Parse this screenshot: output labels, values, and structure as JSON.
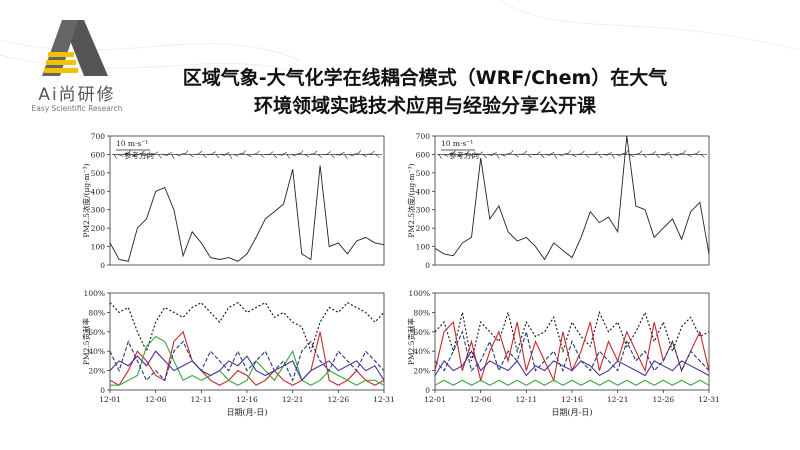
{
  "logo": {
    "name": "Ai尚研修",
    "tagline": "Easy Scientific Research"
  },
  "title": {
    "line1": "区域气象-大气化学在线耦合模式（WRF/Chem）在大气",
    "line2": "环境领域实践技术应用与经验分享公开课"
  },
  "colors": {
    "series_black": "#222222",
    "contrib_dotted": "#111111",
    "contrib_red": "#c62828",
    "contrib_green": "#3aa63a",
    "contrib_purple": "#4b2f9a",
    "contrib_navy": "#1f3b7a",
    "contrib_yellow": "#e3c94a"
  },
  "chart_data": [
    {
      "type": "line",
      "panel": "left-top",
      "ylabel": "PM2.5浓度/(μg·m⁻³)",
      "yticks": [
        "0",
        "100",
        "200",
        "300",
        "400",
        "500",
        "600",
        "700"
      ],
      "ylim": [
        0,
        700
      ],
      "wind_label": "10 m·s⁻¹",
      "wind_ref": "参考方向",
      "x": [
        0,
        1,
        2,
        3,
        4,
        5,
        6,
        7,
        8,
        9,
        10,
        11,
        12,
        13,
        14,
        15,
        16,
        17,
        18,
        19,
        20,
        21,
        22,
        23,
        24,
        25,
        26,
        27,
        28,
        29,
        30
      ],
      "series": [
        {
          "values": [
            120,
            30,
            20,
            200,
            250,
            400,
            420,
            300,
            50,
            180,
            120,
            40,
            30,
            40,
            20,
            60,
            150,
            250,
            290,
            330,
            520,
            60,
            30,
            540,
            100,
            120,
            60,
            130,
            150,
            120,
            110
          ]
        }
      ]
    },
    {
      "type": "line",
      "panel": "right-top",
      "ylabel": "PM2.5浓度/(μg·m⁻³)",
      "yticks": [
        "0",
        "100",
        "200",
        "300",
        "400",
        "500",
        "600",
        "700"
      ],
      "ylim": [
        0,
        700
      ],
      "wind_label": "10 m·s⁻¹",
      "wind_ref": "参考方向",
      "x": [
        0,
        1,
        2,
        3,
        4,
        5,
        6,
        7,
        8,
        9,
        10,
        11,
        12,
        13,
        14,
        15,
        16,
        17,
        18,
        19,
        20,
        21,
        22,
        23,
        24,
        25,
        26,
        27,
        28,
        29,
        30
      ],
      "series": [
        {
          "values": [
            90,
            60,
            50,
            120,
            150,
            580,
            250,
            320,
            180,
            130,
            150,
            100,
            30,
            120,
            80,
            40,
            150,
            290,
            230,
            260,
            180,
            700,
            320,
            300,
            150,
            200,
            250,
            140,
            290,
            340,
            60
          ]
        }
      ]
    },
    {
      "type": "line",
      "panel": "left-bottom",
      "ylabel": "PM2.5贡献率",
      "yticks": [
        "0",
        "20%",
        "40%",
        "60%",
        "80%",
        "100%"
      ],
      "ylim": [
        0,
        100
      ],
      "xlabel": "日期(月-日)",
      "xticks": [
        "12-01",
        "12-06",
        "12-11",
        "12-16",
        "12-21",
        "12-26",
        "12-31"
      ],
      "x": [
        0,
        1,
        2,
        3,
        4,
        5,
        6,
        7,
        8,
        9,
        10,
        11,
        12,
        13,
        14,
        15,
        16,
        17,
        18,
        19,
        20,
        21,
        22,
        23,
        24,
        25,
        26,
        27,
        28,
        29,
        30
      ],
      "series": [
        {
          "values": [
            90,
            80,
            85,
            60,
            40,
            70,
            85,
            80,
            75,
            85,
            90,
            80,
            70,
            85,
            90,
            80,
            85,
            90,
            75,
            80,
            70,
            65,
            40,
            70,
            85,
            80,
            90,
            85,
            80,
            70,
            80
          ]
        },
        {
          "values": [
            10,
            5,
            20,
            40,
            30,
            15,
            10,
            50,
            60,
            30,
            20,
            10,
            5,
            10,
            20,
            15,
            5,
            10,
            20,
            10,
            5,
            10,
            20,
            60,
            10,
            5,
            10,
            20,
            10,
            5,
            10
          ]
        },
        {
          "values": [
            5,
            5,
            10,
            15,
            45,
            55,
            50,
            30,
            10,
            15,
            10,
            15,
            20,
            10,
            5,
            10,
            30,
            20,
            10,
            25,
            40,
            10,
            5,
            10,
            20,
            15,
            10,
            5,
            10,
            10,
            5
          ]
        },
        {
          "values": [
            40,
            20,
            50,
            30,
            10,
            20,
            10,
            40,
            50,
            30,
            20,
            40,
            30,
            20,
            40,
            20,
            30,
            40,
            20,
            30,
            10,
            40,
            50,
            30,
            20,
            40,
            30,
            20,
            40,
            30,
            20
          ]
        },
        {
          "values": [
            20,
            30,
            25,
            35,
            25,
            40,
            30,
            20,
            25,
            30,
            20,
            15,
            20,
            30,
            25,
            35,
            20,
            15,
            20,
            25,
            30,
            10,
            20,
            25,
            30,
            20,
            25,
            30,
            20,
            25,
            10
          ]
        }
      ]
    },
    {
      "type": "line",
      "panel": "right-bottom",
      "ylabel": "PM2.5贡献率",
      "yticks": [
        "0",
        "20%",
        "40%",
        "60%",
        "80%",
        "100%"
      ],
      "ylim": [
        0,
        100
      ],
      "xlabel": "日期(月-日)",
      "xticks": [
        "12-01",
        "12-06",
        "12-11",
        "12-16",
        "12-21",
        "12-26",
        "12-31"
      ],
      "x": [
        0,
        1,
        2,
        3,
        4,
        5,
        6,
        7,
        8,
        9,
        10,
        11,
        12,
        13,
        14,
        15,
        16,
        17,
        18,
        19,
        20,
        21,
        22,
        23,
        24,
        25,
        26,
        27,
        28,
        29,
        30
      ],
      "series": [
        {
          "values": [
            60,
            70,
            40,
            80,
            30,
            70,
            60,
            50,
            80,
            40,
            70,
            55,
            60,
            75,
            40,
            70,
            55,
            45,
            80,
            60,
            70,
            45,
            60,
            80,
            50,
            70,
            40,
            65,
            75,
            55,
            60
          ]
        },
        {
          "values": [
            20,
            60,
            70,
            20,
            50,
            10,
            40,
            60,
            30,
            70,
            20,
            50,
            30,
            10,
            60,
            20,
            40,
            70,
            20,
            50,
            30,
            60,
            40,
            20,
            70,
            30,
            50,
            20,
            40,
            60,
            20
          ]
        },
        {
          "values": [
            5,
            10,
            5,
            10,
            5,
            10,
            5,
            10,
            5,
            10,
            5,
            10,
            5,
            10,
            5,
            10,
            5,
            10,
            5,
            10,
            5,
            10,
            5,
            10,
            5,
            10,
            5,
            10,
            5,
            10,
            5
          ]
        },
        {
          "values": [
            30,
            20,
            40,
            60,
            20,
            30,
            50,
            20,
            40,
            30,
            60,
            20,
            30,
            40,
            20,
            50,
            30,
            20,
            40,
            30,
            20,
            50,
            30,
            40,
            20,
            30,
            50,
            20,
            40,
            30,
            20
          ]
        },
        {
          "values": [
            15,
            30,
            20,
            25,
            40,
            20,
            30,
            25,
            20,
            30,
            15,
            25,
            20,
            30,
            25,
            20,
            30,
            25,
            15,
            20,
            30,
            25,
            20,
            15,
            30,
            25,
            20,
            30,
            25,
            20,
            15
          ]
        }
      ]
    }
  ]
}
